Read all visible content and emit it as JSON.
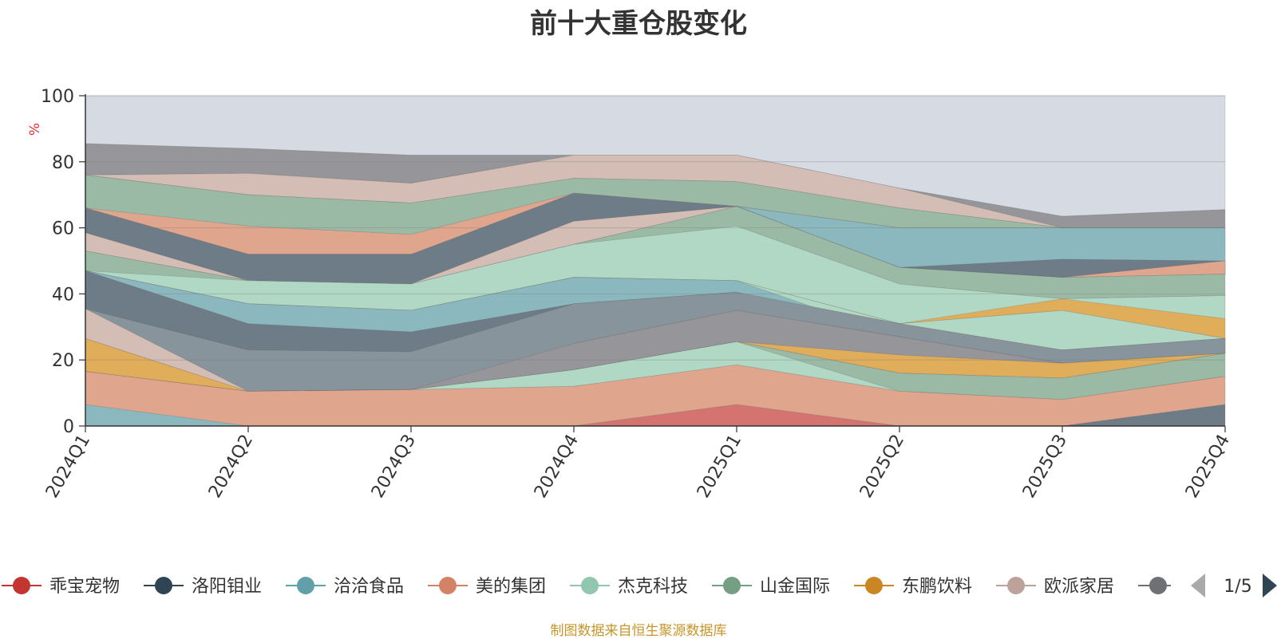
{
  "chart_data": {
    "type": "area",
    "title": "前十大重仓股变化",
    "ylabel": "%",
    "ylim": [
      0,
      100
    ],
    "yticks": [
      0,
      20,
      40,
      60,
      80,
      100
    ],
    "categories": [
      "2024Q1",
      "2024Q2",
      "2024Q3",
      "2024Q4",
      "2025Q1",
      "2025Q2",
      "2025Q3",
      "2025Q4"
    ],
    "grid": true,
    "legend_position": "bottom",
    "legend_page": "1/5",
    "legend": [
      {
        "name": "乖宝宠物",
        "color": "#c23531"
      },
      {
        "name": "洛阳钼业",
        "color": "#2f4554"
      },
      {
        "name": "洽洽食品",
        "color": "#61a0a8"
      },
      {
        "name": "美的集团",
        "color": "#d48265"
      },
      {
        "name": "杰克科技",
        "color": "#91c7ae"
      },
      {
        "name": "山金国际",
        "color": "#749f83"
      },
      {
        "name": "东鹏饮料",
        "color": "#ca8622"
      },
      {
        "name": "欧派家居",
        "color": "#bda29a"
      },
      {
        "name": "",
        "color": "#6e7074"
      }
    ],
    "layers": [
      {
        "upper": [
          100,
          100,
          100,
          100,
          100,
          100,
          100,
          100
        ],
        "lower": [
          85.5,
          84,
          82,
          82,
          82,
          72,
          63.5,
          65.5
        ],
        "color": "#d6dae2"
      },
      {
        "upper": [
          85.5,
          84,
          82,
          82,
          82,
          72,
          63.5,
          65.5
        ],
        "lower": [
          76,
          76.5,
          73.5,
          82,
          82,
          72,
          60,
          60
        ],
        "color": "#95959a"
      },
      {
        "upper": [
          76,
          76.5,
          73.5,
          82,
          82,
          72,
          60,
          60
        ],
        "lower": [
          76,
          70,
          67.5,
          75,
          74,
          66,
          60,
          60
        ],
        "color": "#d3bdb5"
      },
      {
        "upper": [
          76,
          70,
          67.5,
          75,
          74,
          66,
          60,
          60
        ],
        "lower": [
          66,
          70,
          67.5,
          75,
          74,
          66,
          60,
          60
        ],
        "color": "#e0ad5a"
      },
      {
        "upper": [
          76,
          70,
          67.5,
          75,
          74,
          66,
          60,
          60
        ],
        "lower": [
          66,
          60.5,
          58,
          70.5,
          66.5,
          60,
          60,
          60
        ],
        "color": "#9bbaa5"
      },
      {
        "upper": [
          66,
          60.5,
          58,
          70.5,
          66.5,
          60,
          60,
          60
        ],
        "lower": [
          66,
          52,
          52,
          62,
          66.5,
          48,
          45,
          46
        ],
        "color": "#e0a68d"
      },
      {
        "upper": [
          66,
          52,
          52,
          62,
          66.5,
          60,
          60,
          60
        ],
        "lower": [
          66,
          52,
          52,
          62,
          66.5,
          48,
          45,
          46
        ],
        "color": "#8bb8be"
      },
      {
        "upper": [
          66,
          52,
          52,
          70.5,
          66.5,
          48,
          50.5,
          50
        ],
        "lower": [
          58.5,
          44,
          43,
          62,
          66.5,
          48,
          45,
          46
        ],
        "color": "#6e7c87"
      },
      {
        "upper": [
          58.5,
          44,
          43,
          62,
          66.5,
          48,
          45,
          46
        ],
        "lower": [
          53,
          44,
          43,
          55,
          66.5,
          48,
          45,
          46
        ],
        "color": "#d3bdb5"
      },
      {
        "upper": [
          53,
          44,
          43,
          55,
          66.5,
          48,
          45,
          50
        ],
        "lower": [
          47,
          37,
          35,
          45,
          60.5,
          48,
          45,
          46
        ],
        "color": "#e0a68d"
      },
      {
        "upper": [
          53,
          44,
          43,
          55,
          66.5,
          48,
          45,
          46
        ],
        "lower": [
          47,
          37,
          35,
          45,
          60.5,
          43,
          38.5,
          39.5
        ],
        "color": "#9bbaa5"
      },
      {
        "upper": [
          47,
          44,
          43,
          55,
          60.5,
          43,
          38.5,
          39.5
        ],
        "lower": [
          47,
          37,
          35,
          45,
          44,
          31,
          35,
          32.5
        ],
        "color": "#b1d8c4"
      },
      {
        "upper": [
          47,
          37,
          35,
          45,
          44,
          31,
          38.5,
          32.5
        ],
        "lower": [
          47,
          31,
          28.5,
          37,
          40.5,
          31,
          35,
          26.5
        ],
        "color": "#e0ad5a"
      },
      {
        "upper": [
          47,
          37,
          35,
          45,
          44,
          31,
          35,
          26.5
        ],
        "lower": [
          47,
          31,
          28.5,
          37,
          40.5,
          27,
          23,
          26.5
        ],
        "color": "#b1d8c4"
      },
      {
        "upper": [
          47,
          31,
          28.5,
          37,
          40.5,
          31,
          23,
          26.5
        ],
        "lower": [
          47,
          31,
          28.5,
          37,
          40.5,
          27,
          19,
          22
        ],
        "color": "#d57371"
      },
      {
        "upper": [
          47,
          37,
          35,
          45,
          44,
          27,
          23,
          26.5
        ],
        "lower": [
          35.5,
          23,
          22.5,
          37,
          40.5,
          27,
          19,
          22
        ],
        "color": "#8bb8be"
      },
      {
        "upper": [
          47,
          31,
          28.5,
          37,
          40.5,
          27,
          19,
          22
        ],
        "lower": [
          35.5,
          23,
          22.5,
          25,
          35,
          27,
          19,
          22
        ],
        "color": "#6e7c87"
      },
      {
        "upper": [
          35.5,
          23,
          22.5,
          37,
          40.5,
          31,
          23,
          26.5
        ],
        "lower": [
          26.5,
          10.5,
          11,
          25,
          35,
          27,
          19,
          22
        ],
        "color": "#88949b"
      },
      {
        "upper": [
          26.5,
          10.5,
          11,
          25,
          35,
          27,
          19,
          22
        ],
        "lower": [
          26.5,
          10.5,
          11,
          17,
          25.5,
          21.5,
          19,
          22
        ],
        "color": "#95959a"
      },
      {
        "upper": [
          26.5,
          10.5,
          11,
          17,
          25.5,
          21.5,
          19,
          22
        ],
        "lower": [
          16.5,
          10.5,
          11,
          17,
          25.5,
          16,
          14.5,
          22
        ],
        "color": "#e0ad5a"
      },
      {
        "upper": [
          35.5,
          10.5,
          11,
          17,
          25.5,
          16,
          14.5,
          22
        ],
        "lower": [
          26.5,
          10.5,
          11,
          17,
          25.5,
          16,
          14.5,
          22
        ],
        "color": "#d3bdb5"
      },
      {
        "upper": [
          16.5,
          10.5,
          11,
          17,
          25.5,
          16,
          14.5,
          22
        ],
        "lower": [
          16.5,
          10.5,
          11,
          12,
          18.5,
          10.5,
          8,
          15
        ],
        "color": "#9bbaa5"
      },
      {
        "upper": [
          16.5,
          10.5,
          11,
          17,
          25.5,
          10.5,
          8,
          15
        ],
        "lower": [
          16.5,
          10.5,
          11,
          12,
          18.5,
          10.5,
          8,
          15
        ],
        "color": "#b1d8c4"
      },
      {
        "upper": [
          16.5,
          10.5,
          11,
          12,
          18.5,
          10.5,
          8,
          15
        ],
        "lower": [
          6.5,
          0,
          0,
          0,
          6.5,
          0,
          0,
          6.5
        ],
        "color": "#e0a68d"
      },
      {
        "upper": [
          6.5,
          0,
          0,
          0,
          0,
          0,
          0,
          0
        ],
        "lower": [
          0,
          0,
          0,
          0,
          0,
          0,
          0,
          0
        ],
        "color": "#8bb8be"
      },
      {
        "upper": [
          0,
          0,
          0,
          0,
          6.5,
          0,
          0,
          0
        ],
        "lower": [
          0,
          0,
          0,
          0,
          0,
          0,
          0,
          0
        ],
        "color": "#d57371"
      },
      {
        "upper": [
          0,
          0,
          0,
          0,
          0,
          0,
          0,
          6.5
        ],
        "lower": [
          0,
          0,
          0,
          0,
          0,
          0,
          0,
          0
        ],
        "color": "#6e7c87"
      }
    ]
  },
  "footer": "制图数据来自恒生聚源数据库"
}
